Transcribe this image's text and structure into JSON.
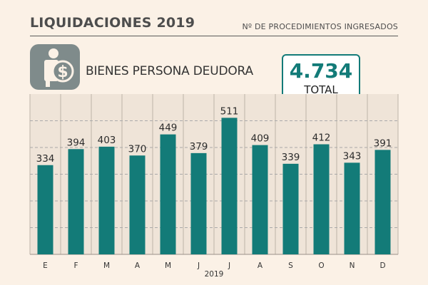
{
  "header": {
    "title": "LIQUIDACIONES 2019",
    "subtitle": "Nº DE PROCEDIMIENTOS INGRESADOS"
  },
  "category": {
    "label": "BIENES PERSONA DEUDORA",
    "icon": "person-dollar-icon"
  },
  "total": {
    "value": "4.734",
    "label": "TOTAL"
  },
  "colors": {
    "accent": "#137b78",
    "background": "#fbf1e6",
    "badge": "#7f8b8b"
  },
  "chart_data": {
    "type": "bar",
    "title": "LIQUIDACIONES 2019",
    "subtitle": "Nº DE PROCEDIMIENTOS INGRESADOS",
    "series_name": "BIENES PERSONA DEUDORA",
    "categories": [
      "E",
      "F",
      "M",
      "A",
      "M",
      "J",
      "J",
      "A",
      "S",
      "O",
      "N",
      "D"
    ],
    "values": [
      334,
      394,
      403,
      370,
      449,
      379,
      511,
      409,
      339,
      412,
      343,
      391
    ],
    "value_labels": [
      "334",
      "394",
      "403",
      "370",
      "449",
      "379",
      "511",
      "409",
      "339",
      "412",
      "343",
      "391"
    ],
    "xlabel": "2019",
    "ylabel": "",
    "ylim": [
      0,
      600
    ],
    "grid": true,
    "total": "4.734"
  }
}
